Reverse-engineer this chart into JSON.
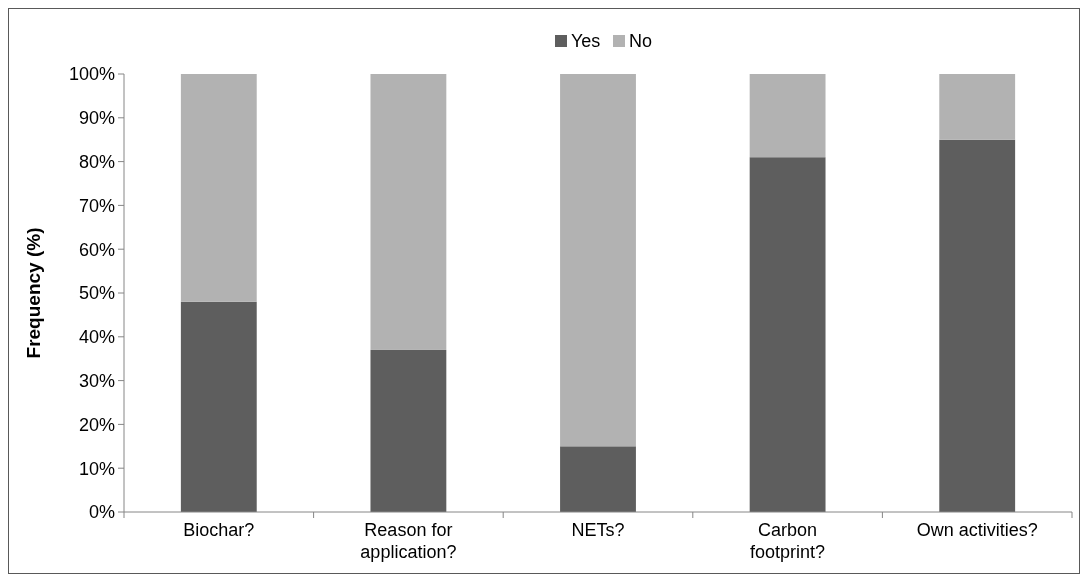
{
  "chart_data": {
    "type": "bar",
    "stacked": true,
    "ylabel": "Frequency (%)",
    "categories": [
      "Biochar?",
      "Reason for application?",
      "NETs?",
      "Carbon footprint?",
      "Own activities?"
    ],
    "series": [
      {
        "name": "Yes",
        "color": "#5e5e5e",
        "values": [
          48,
          37,
          15,
          81,
          85
        ]
      },
      {
        "name": "No",
        "color": "#b2b2b2",
        "values": [
          52,
          63,
          85,
          19,
          15
        ]
      }
    ],
    "ylim": [
      0,
      100
    ],
    "yticks": [
      {
        "value": 0,
        "label": "0%"
      },
      {
        "value": 10,
        "label": "10%"
      },
      {
        "value": 20,
        "label": "20%"
      },
      {
        "value": 30,
        "label": "30%"
      },
      {
        "value": 40,
        "label": "40%"
      },
      {
        "value": 50,
        "label": "50%"
      },
      {
        "value": 60,
        "label": "60%"
      },
      {
        "value": 70,
        "label": "70%"
      },
      {
        "value": 80,
        "label": "80%"
      },
      {
        "value": 90,
        "label": "90%"
      },
      {
        "value": 100,
        "label": "100%"
      }
    ],
    "legend": "top",
    "grid": false
  }
}
